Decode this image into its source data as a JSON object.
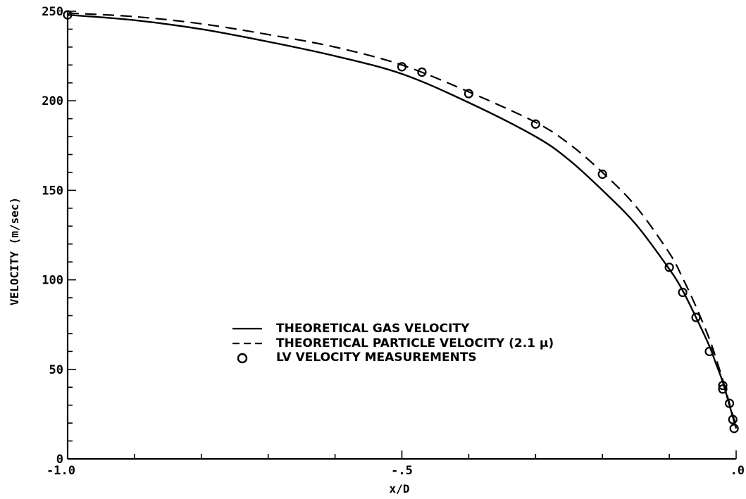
{
  "chart_data": {
    "type": "line",
    "xlabel": "x/D",
    "ylabel": "VELOCITY (m/sec)",
    "xlim": [
      -1.0,
      0.0
    ],
    "ylim": [
      0,
      250
    ],
    "x_ticks": [
      {
        "value": -1.0,
        "label": "-1.0"
      },
      {
        "value": -0.5,
        "label": "-.5"
      },
      {
        "value": 0.0,
        "label": ".0"
      }
    ],
    "y_ticks": [
      {
        "value": 0,
        "label": "0"
      },
      {
        "value": 50,
        "label": "50"
      },
      {
        "value": 100,
        "label": "100"
      },
      {
        "value": 150,
        "label": "150"
      },
      {
        "value": 200,
        "label": "200"
      },
      {
        "value": 250,
        "label": "250"
      }
    ],
    "grid": false,
    "legend_position": "center",
    "series": [
      {
        "name": "THEORETICAL GAS VELOCITY",
        "style": "solid",
        "color": "#000000",
        "x": [
          -1.0,
          -0.9,
          -0.8,
          -0.7,
          -0.6,
          -0.5,
          -0.4,
          -0.3,
          -0.25,
          -0.2,
          -0.15,
          -0.1,
          -0.08,
          -0.06,
          -0.04,
          -0.03,
          -0.02,
          -0.01,
          0.0
        ],
        "y": [
          248,
          245,
          240,
          233,
          225,
          215,
          199,
          180,
          167,
          150,
          131,
          106,
          94,
          79,
          63,
          53,
          43,
          30,
          17
        ]
      },
      {
        "name": "THEORETICAL PARTICLE VELOCITY (2.1 μ)",
        "style": "dashed",
        "color": "#000000",
        "x": [
          -1.0,
          -0.9,
          -0.8,
          -0.7,
          -0.6,
          -0.5,
          -0.4,
          -0.3,
          -0.25,
          -0.2,
          -0.15,
          -0.1,
          -0.08,
          -0.06,
          -0.04,
          -0.03,
          -0.02,
          -0.01,
          0.0
        ],
        "y": [
          249,
          247,
          243,
          237,
          230,
          220,
          205,
          188,
          176,
          160,
          141,
          115,
          101,
          85,
          67,
          56,
          44,
          31,
          18
        ]
      },
      {
        "name": "LV VELOCITY MEASUREMENTS",
        "style": "markers",
        "marker": "circle",
        "color": "#000000",
        "x": [
          -1.0,
          -0.5,
          -0.47,
          -0.4,
          -0.3,
          -0.2,
          -0.1,
          -0.08,
          -0.06,
          -0.04,
          -0.02,
          -0.02,
          -0.01,
          -0.005,
          -0.003
        ],
        "y": [
          248,
          219,
          216,
          204,
          187,
          159,
          107,
          93,
          79,
          60,
          41,
          39,
          31,
          22,
          17
        ]
      }
    ]
  }
}
